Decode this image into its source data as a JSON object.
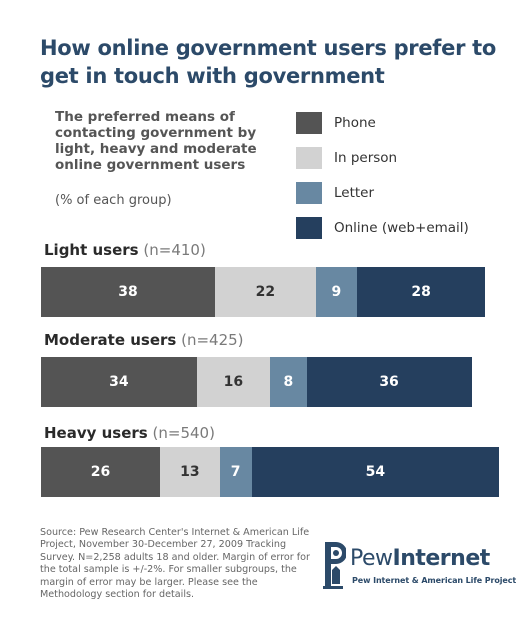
{
  "chart_data": {
    "type": "bar",
    "orientation": "horizontal-stacked",
    "title": "How online government users prefer to get in touch with government",
    "subtitle": "The preferred means of contacting government by light, heavy and moderate online government users",
    "unit_note": "(% of each group)",
    "xlim": [
      0,
      100
    ],
    "legend_position": "top-right",
    "series": [
      {
        "name": "Phone",
        "color": "#545454",
        "text_color": "#ffffff"
      },
      {
        "name": "In person",
        "color": "#d2d2d2",
        "text_color": "#333333"
      },
      {
        "name": "Letter",
        "color": "#6888a2",
        "text_color": "#ffffff"
      },
      {
        "name": "Online (web+email)",
        "color": "#253f5e",
        "text_color": "#ffffff"
      }
    ],
    "categories": [
      {
        "name": "Light users",
        "n": "(n=410)",
        "values": [
          38,
          22,
          9,
          28
        ]
      },
      {
        "name": "Moderate users",
        "n": "(n=425)",
        "values": [
          34,
          16,
          8,
          36
        ]
      },
      {
        "name": "Heavy users",
        "n": "(n=540)",
        "values": [
          26,
          13,
          7,
          54
        ]
      }
    ]
  },
  "source": "Source: Pew Research Center's Internet & American Life Project, November 30-December 27, 2009 Tracking Survey. N=2,258 adults 18 and older. Margin of error for the total sample is +/-2%. For smaller subgroups, the margin of error may be larger. Please see the Methodology section for details.",
  "logo": {
    "word_1": "Pew",
    "word_2": "Internet",
    "tagline": "Pew Internet & American Life Project",
    "color": "#2c4a69"
  }
}
